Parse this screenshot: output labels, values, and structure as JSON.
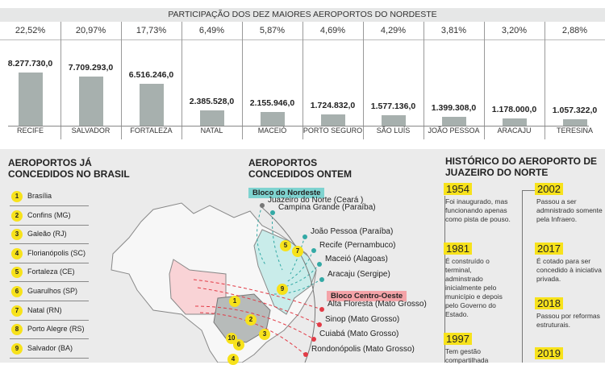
{
  "chart_data": {
    "type": "bar",
    "title": "PARTICIPAÇÃO DOS DEZ MAIORES AEROPORTOS DO NORDESTE",
    "categories": [
      "RECIFE",
      "SALVADOR",
      "FORTALEZA",
      "NATAL",
      "MACEIÓ",
      "PORTO SEGURO",
      "SÃO LUÍS",
      "JOÃO PESSOA",
      "ARACAJU",
      "TERESINA"
    ],
    "values": [
      8277730.0,
      7709293.0,
      6516246.0,
      2385528.0,
      2155946.0,
      1724832.0,
      1577136.0,
      1399308.0,
      1178000.0,
      1057322.0
    ],
    "value_labels": [
      "8.277.730,0",
      "7.709.293,0",
      "6.516.246,0",
      "2.385.528,0",
      "2.155.946,0",
      "1.724.832,0",
      "1.577.136,0",
      "1.399.308,0",
      "1.178.000,0",
      "1.057.322,0"
    ],
    "shares": [
      "22,52%",
      "20,97%",
      "17,73%",
      "6,49%",
      "5,87%",
      "4,69%",
      "4,29%",
      "3,81%",
      "3,20%",
      "2,88%"
    ],
    "bar_color": "#a7b0ae",
    "grid": false
  },
  "conceded": {
    "title_line1": "AEROPORTOS JÁ",
    "title_line2": "CONCEDIDOS NO BRASIL",
    "items": [
      {
        "n": "1",
        "label": "Brasília"
      },
      {
        "n": "2",
        "label": "Confins (MG)"
      },
      {
        "n": "3",
        "label": "Galeão (RJ)"
      },
      {
        "n": "4",
        "label": "Florianópolis (SC)"
      },
      {
        "n": "5",
        "label": "Fortaleza (CE)"
      },
      {
        "n": "6",
        "label": "Guarulhos (SP)"
      },
      {
        "n": "7",
        "label": "Natal (RN)"
      },
      {
        "n": "8",
        "label": "Porto Alegre (RS)"
      },
      {
        "n": "9",
        "label": "Salvador (BA)"
      }
    ],
    "badge_color": "#f7e21b"
  },
  "map": {
    "markers": [
      "1",
      "2",
      "3",
      "4",
      "5",
      "6",
      "7",
      "9",
      "10"
    ]
  },
  "yesterday": {
    "title_line1": "AEROPORTOS",
    "title_line2": "CONCEDIDOS ONTEM",
    "nordeste": {
      "label": "Bloco do Nordeste",
      "color": "#7fd3d0",
      "airports": [
        "Juazeiro do Norte (Ceará )",
        "Campina Grande (Paraíba)",
        "João Pessoa (Paraíba)",
        "Recife (Pernambuco)",
        "Maceió (Alagoas)",
        "Aracaju (Sergipe)"
      ]
    },
    "centro_oeste": {
      "label": "Bloco Centro-Oeste",
      "color": "#f4a3a8",
      "airports": [
        "Alta Floresta (Mato Grosso)",
        "Sinop (Mato Grosso)",
        "Cuiabá (Mato Grosso)",
        "Rondonópolis (Mato Grosso)"
      ]
    }
  },
  "history": {
    "title_line1": "HISTÓRICO DO AEROPORTO DE",
    "title_line2": "JUAZEIRO DO NORTE",
    "events": [
      {
        "year": "1954",
        "text": "Foi inaugurado, mas funcionando apenas como pista de pouso."
      },
      {
        "year": "1981",
        "text": "É construído o terminal, adminstrado inicialmente pelo município e depois pelo Governo do Estado."
      },
      {
        "year": "1997",
        "text": "Tem gestão compartilhada"
      },
      {
        "year": "2002",
        "text": "Passou a ser admnistrado somente pela Infraero."
      },
      {
        "year": "2017",
        "text": "É cotado para ser concedido à iniciativa privada."
      },
      {
        "year": "2018",
        "text": "Passou por reformas estruturais."
      },
      {
        "year": "2019",
        "text": ""
      }
    ]
  }
}
